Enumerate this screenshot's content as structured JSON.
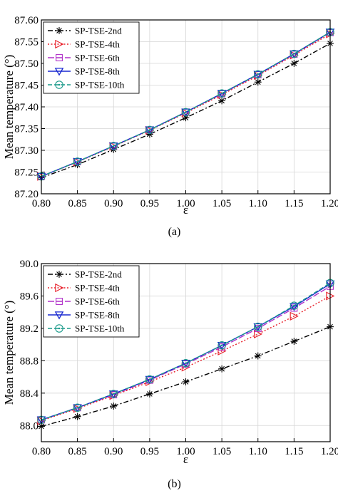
{
  "chart_data": [
    {
      "type": "line",
      "caption": "(a)",
      "xlabel": "ε",
      "ylabel": "Mean temperature (°)",
      "xlim": [
        0.8,
        1.2
      ],
      "ylim": [
        87.2,
        87.6
      ],
      "xticks": [
        "0.80",
        "0.85",
        "0.90",
        "0.95",
        "1.00",
        "1.05",
        "1.10",
        "1.15",
        "1.20"
      ],
      "yticks": [
        "87.20",
        "87.25",
        "87.30",
        "87.35",
        "87.40",
        "87.45",
        "87.50",
        "87.55",
        "87.60"
      ],
      "grid": true,
      "legend_position": "top-left",
      "x": [
        0.8,
        0.85,
        0.9,
        0.95,
        1.0,
        1.05,
        1.1,
        1.15,
        1.2
      ],
      "series": [
        {
          "name": "SP-TSE-2nd",
          "values": [
            87.237,
            87.267,
            87.302,
            87.337,
            87.375,
            87.414,
            87.457,
            87.5,
            87.546
          ]
        },
        {
          "name": "SP-TSE-4th",
          "values": [
            87.24,
            87.273,
            87.309,
            87.346,
            87.386,
            87.428,
            87.472,
            87.519,
            87.568
          ]
        },
        {
          "name": "SP-TSE-6th",
          "values": [
            87.24,
            87.274,
            87.31,
            87.347,
            87.388,
            87.43,
            87.474,
            87.521,
            87.571
          ]
        },
        {
          "name": "SP-TSE-8th",
          "values": [
            87.24,
            87.274,
            87.31,
            87.347,
            87.388,
            87.431,
            87.475,
            87.522,
            87.572
          ]
        },
        {
          "name": "SP-TSE-10th",
          "values": [
            87.24,
            87.274,
            87.31,
            87.347,
            87.388,
            87.431,
            87.475,
            87.522,
            87.572
          ]
        }
      ]
    },
    {
      "type": "line",
      "caption": "(b)",
      "xlabel": "ε",
      "ylabel": "Mean temperature (°)",
      "xlim": [
        0.8,
        1.2
      ],
      "ylim": [
        87.8,
        90.0
      ],
      "xticks": [
        "0.80",
        "0.85",
        "0.90",
        "0.95",
        "1.00",
        "1.05",
        "1.10",
        "1.15",
        "1.20"
      ],
      "yticks": [
        "88.0",
        "88.4",
        "88.8",
        "89.2",
        "89.6",
        "90.0"
      ],
      "ytick_values": [
        88.0,
        88.4,
        88.8,
        89.2,
        89.6,
        90.0
      ],
      "grid": true,
      "legend_position": "top-left",
      "x": [
        0.8,
        0.85,
        0.9,
        0.95,
        1.0,
        1.05,
        1.1,
        1.15,
        1.2
      ],
      "series": [
        {
          "name": "SP-TSE-2nd",
          "values": [
            87.99,
            88.11,
            88.24,
            88.39,
            88.54,
            88.7,
            88.86,
            89.04,
            89.22
          ]
        },
        {
          "name": "SP-TSE-4th",
          "values": [
            88.06,
            88.21,
            88.37,
            88.54,
            88.72,
            88.92,
            89.13,
            89.35,
            89.6
          ]
        },
        {
          "name": "SP-TSE-6th",
          "values": [
            88.07,
            88.22,
            88.38,
            88.56,
            88.76,
            88.97,
            89.2,
            89.45,
            89.72
          ]
        },
        {
          "name": "SP-TSE-8th",
          "values": [
            88.07,
            88.22,
            88.39,
            88.57,
            88.77,
            88.99,
            89.22,
            89.47,
            89.75
          ]
        },
        {
          "name": "SP-TSE-10th",
          "values": [
            88.07,
            88.22,
            88.39,
            88.57,
            88.77,
            88.99,
            89.22,
            89.48,
            89.76
          ]
        }
      ]
    }
  ],
  "styles": [
    {
      "color": "#000000",
      "dash": "7,3,2,3",
      "marker": "asterisk"
    },
    {
      "color": "#e8202a",
      "dash": "2,2.5",
      "marker": "triangle-right"
    },
    {
      "color": "#b030c8",
      "dash": "9,3",
      "marker": "square"
    },
    {
      "color": "#1828d0",
      "dash": "",
      "marker": "triangle-down"
    },
    {
      "color": "#1a9a8a",
      "dash": "6,3",
      "marker": "circle-dot"
    }
  ]
}
